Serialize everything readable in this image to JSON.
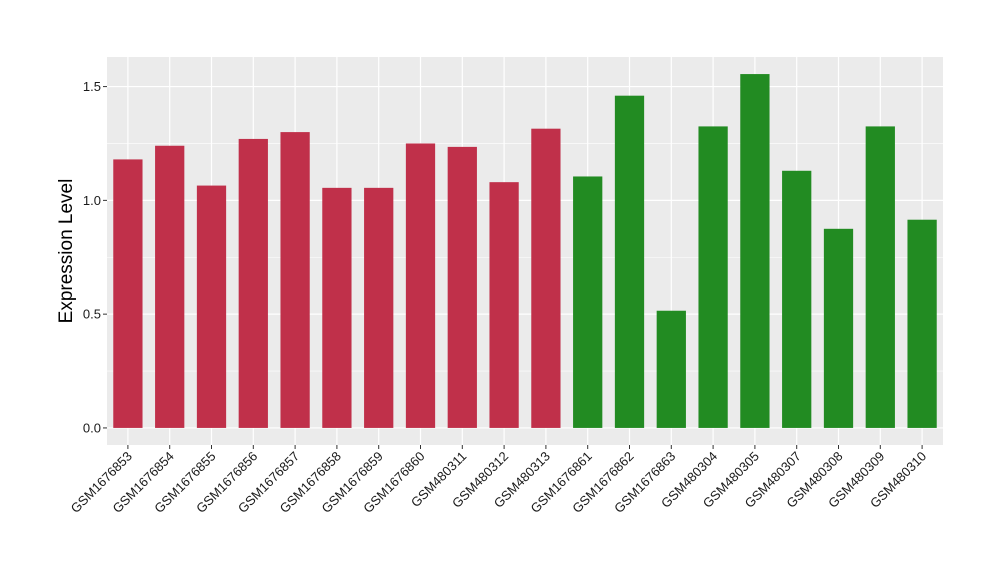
{
  "chart_data": {
    "type": "bar",
    "title": "",
    "xlabel": "",
    "ylabel": "Expression Level",
    "ylim": [
      -0.075,
      1.63
    ],
    "yticks": [
      0.0,
      0.5,
      1.0,
      1.5
    ],
    "ytick_labels": [
      "0.0",
      "0.5",
      "1.0",
      "1.5"
    ],
    "grid": true,
    "legend": "none",
    "categories": [
      "GSM1676853",
      "GSM1676854",
      "GSM1676855",
      "GSM1676856",
      "GSM1676857",
      "GSM1676858",
      "GSM1676859",
      "GSM1676860",
      "GSM480311",
      "GSM480312",
      "GSM480313",
      "GSM1676861",
      "GSM1676862",
      "GSM1676863",
      "GSM480304",
      "GSM480305",
      "GSM480307",
      "GSM480308",
      "GSM480309",
      "GSM480310"
    ],
    "values": [
      1.18,
      1.24,
      1.065,
      1.27,
      1.3,
      1.055,
      1.055,
      1.25,
      1.235,
      1.08,
      1.315,
      1.105,
      1.46,
      0.515,
      1.325,
      1.555,
      1.13,
      0.875,
      1.325,
      0.915
    ],
    "group_colors": [
      "#C0304A",
      "#C0304A",
      "#C0304A",
      "#C0304A",
      "#C0304A",
      "#C0304A",
      "#C0304A",
      "#C0304A",
      "#C0304A",
      "#C0304A",
      "#C0304A",
      "#228B22",
      "#228B22",
      "#228B22",
      "#228B22",
      "#228B22",
      "#228B22",
      "#228B22",
      "#228B22",
      "#228B22"
    ],
    "panel_background": "#EBEBEB",
    "gridline_color": "#FFFFFF"
  }
}
